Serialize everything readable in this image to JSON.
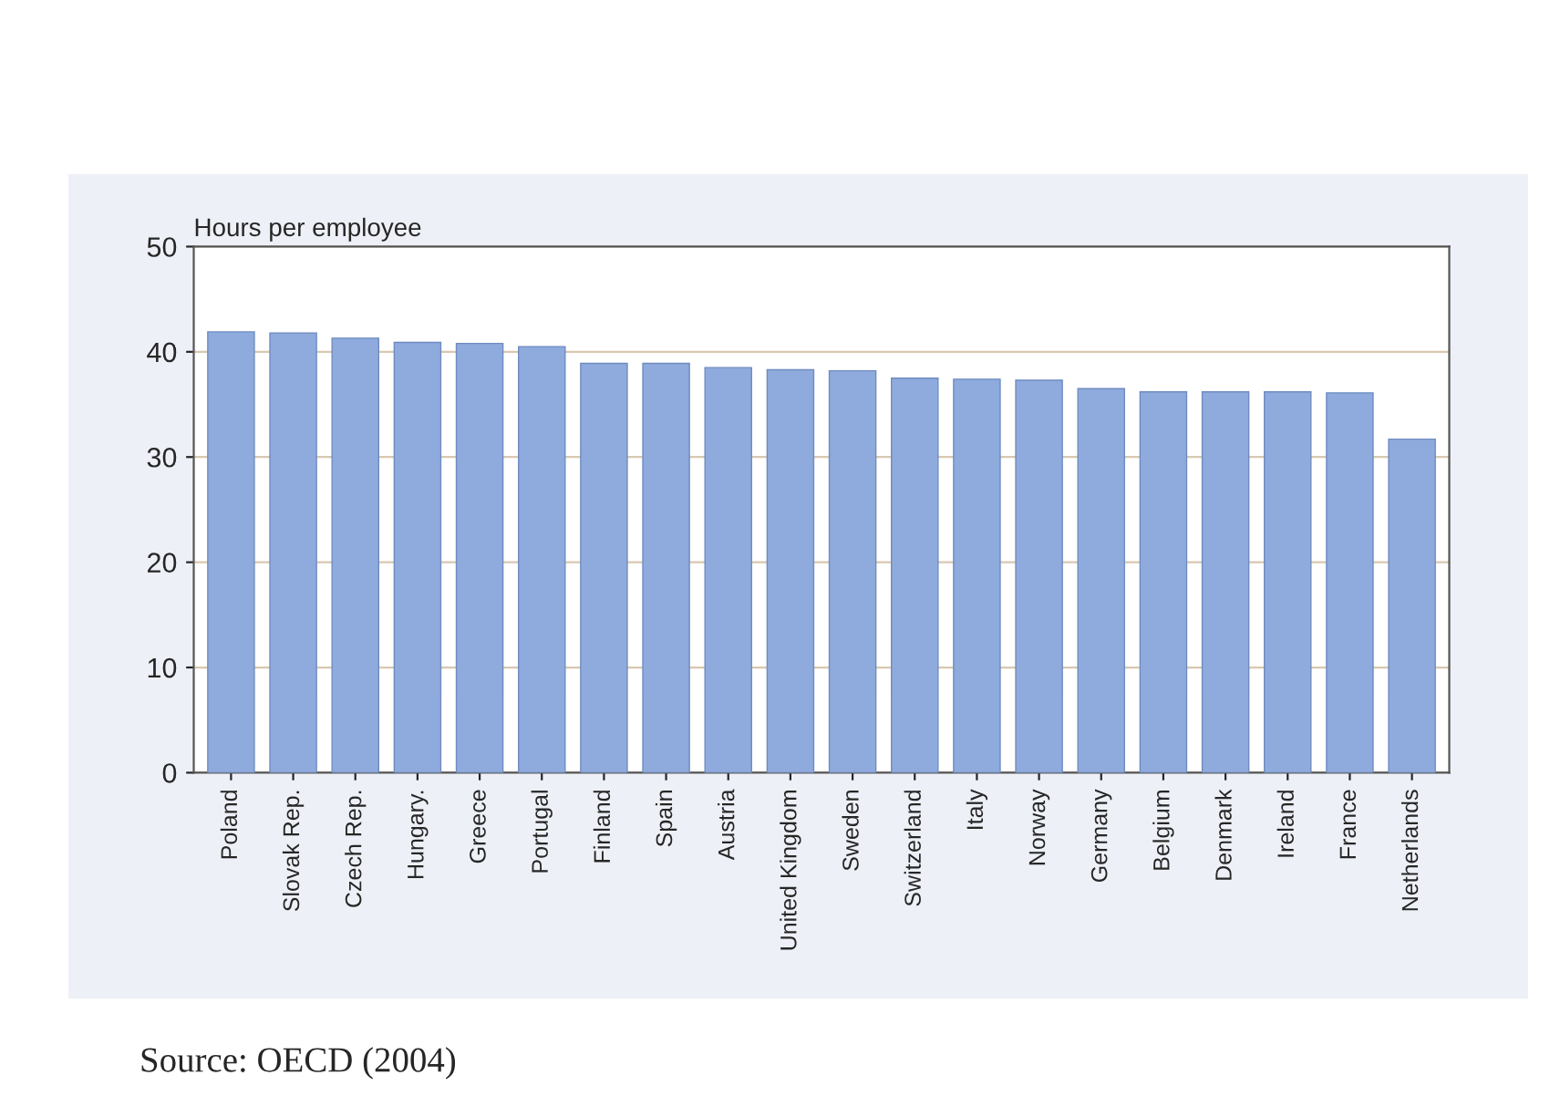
{
  "chart_data": {
    "type": "bar",
    "ylabel": "Hours per employee",
    "categories": [
      "Poland",
      "Slovak Rep.",
      "Czech Rep.",
      "Hungary.",
      "Greece",
      "Portugal",
      "Finland",
      "Spain",
      "Austria",
      "United Kingdom",
      "Sweden",
      "Switzerland",
      "Italy",
      "Norway",
      "Germany",
      "Belgium",
      "Denmark",
      "Ireland",
      "France",
      "Netherlands"
    ],
    "values": [
      41.9,
      41.8,
      41.3,
      40.9,
      40.8,
      40.5,
      38.9,
      38.9,
      38.5,
      38.3,
      38.2,
      37.5,
      37.4,
      37.3,
      36.5,
      36.2,
      36.2,
      36.2,
      36.1,
      31.7
    ],
    "color": "#8faadc",
    "ylim": [
      0,
      50
    ],
    "yticks": [
      0,
      10,
      20,
      30,
      40,
      50
    ],
    "grid": "y",
    "legend": false,
    "annotations": [
      "Source: OECD (2004)"
    ]
  }
}
